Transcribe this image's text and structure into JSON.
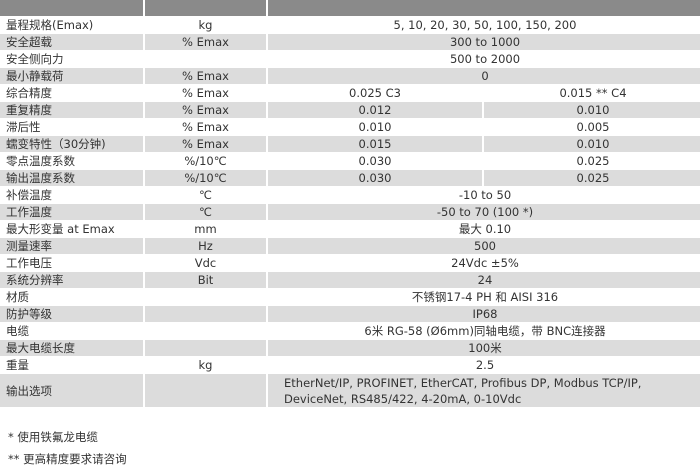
{
  "table": {
    "rows": [
      {
        "label": "量程规格(Emax)",
        "unit": "kg",
        "values": [
          "5, 10, 20, 30, 50, 100, 150, 200"
        ]
      },
      {
        "label": "安全超载",
        "unit": "% Emax",
        "values": [
          "300 to 1000"
        ]
      },
      {
        "label": "安全侧向力",
        "unit": "",
        "values": [
          "500 to 2000"
        ]
      },
      {
        "label": "最小静载荷",
        "unit": "% Emax",
        "values": [
          "0"
        ]
      },
      {
        "label": "综合精度",
        "unit": "% Emax",
        "values": [
          "0.025  C3",
          "0.015 ** C4"
        ]
      },
      {
        "label": "重复精度",
        "unit": "% Emax",
        "values": [
          "0.012",
          "0.010"
        ]
      },
      {
        "label": "滞后性",
        "unit": "% Emax",
        "values": [
          "0.010",
          "0.005"
        ]
      },
      {
        "label": "蠕变特性（30分钟)",
        "unit": "% Emax",
        "values": [
          "0.015",
          "0.010"
        ]
      },
      {
        "label": "零点温度系数",
        "unit": "%/10℃",
        "values": [
          "0.030",
          "0.025"
        ]
      },
      {
        "label": "输出温度系数",
        "unit": "%/10℃",
        "values": [
          "0.030",
          "0.025"
        ]
      },
      {
        "label": "补偿温度",
        "unit": "℃",
        "values": [
          "-10 to 50"
        ]
      },
      {
        "label": "工作温度",
        "unit": "℃",
        "values": [
          "-50 to 70 (100 *)"
        ]
      },
      {
        "label": "最大形变量 at Emax",
        "unit": "mm",
        "values": [
          "最大 0.10"
        ]
      },
      {
        "label": "测量速率",
        "unit": "Hz",
        "values": [
          "500"
        ]
      },
      {
        "label": "工作电压",
        "unit": "Vdc",
        "values": [
          "24Vdc ±5%"
        ]
      },
      {
        "label": "系统分辨率",
        "unit": "Bit",
        "values": [
          "24"
        ]
      },
      {
        "label": "材质",
        "unit": "",
        "values": [
          "不锈钢17-4 PH 和 AISI 316"
        ]
      },
      {
        "label": "防护等级",
        "unit": "",
        "values": [
          "IP68"
        ]
      },
      {
        "label": "电缆",
        "unit": "",
        "values": [
          "6米 RG-58 (Ø6mm)同轴电缆，带 BNC连接器"
        ]
      },
      {
        "label": "最大电缆长度",
        "unit": "",
        "values": [
          "100米"
        ]
      },
      {
        "label": "重量",
        "unit": "kg",
        "values": [
          "2.5"
        ]
      },
      {
        "label": "输出选项",
        "unit": "",
        "values": [
          "EtherNet/IP, PROFINET, EtherCAT, Profibus DP, Modbus TCP/IP, DeviceNet, RS485/422, 4-20mA, 0-10Vdc"
        ],
        "multiline": true
      }
    ]
  },
  "notes": [
    "* 使用铁氟龙电缆",
    "** 更高精度要求请咨询"
  ],
  "colors": {
    "header": "#8a8a8a",
    "stripe": "#dcdcdc",
    "text": "#333333"
  }
}
